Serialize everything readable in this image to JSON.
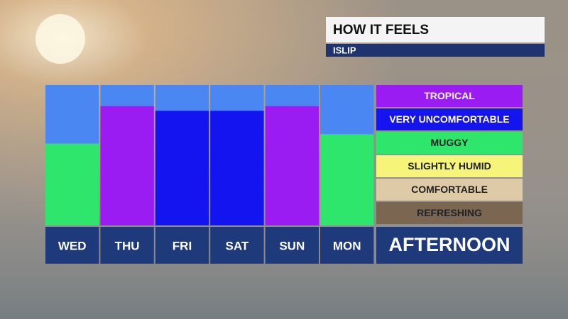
{
  "chart_data": {
    "type": "bar",
    "title": "HOW IT FEELS",
    "subtitle": "ISLIP",
    "x_label": "AFTERNOON",
    "categories": [
      "WED",
      "THU",
      "FRI",
      "SAT",
      "SUN",
      "MON"
    ],
    "values": [
      3.5,
      5.1,
      4.9,
      4.9,
      5.1,
      3.9
    ],
    "colors": [
      "#2ee66b",
      "#9a1cf2",
      "#1414f0",
      "#1414f0",
      "#9a1cf2",
      "#2ee66b"
    ],
    "ylim": [
      0,
      6
    ],
    "levels": [
      {
        "name": "TROPICAL",
        "color": "#9a1cf2"
      },
      {
        "name": "VERY UNCOMFORTABLE",
        "color": "#1414f0"
      },
      {
        "name": "MUGGY",
        "color": "#2ee66b"
      },
      {
        "name": "SLIGHTLY HUMID",
        "color": "#f7f47a"
      },
      {
        "name": "COMFORTABLE",
        "color": "#dfcaa8"
      },
      {
        "name": "REFRESHING",
        "color": "#7b6652"
      }
    ]
  }
}
